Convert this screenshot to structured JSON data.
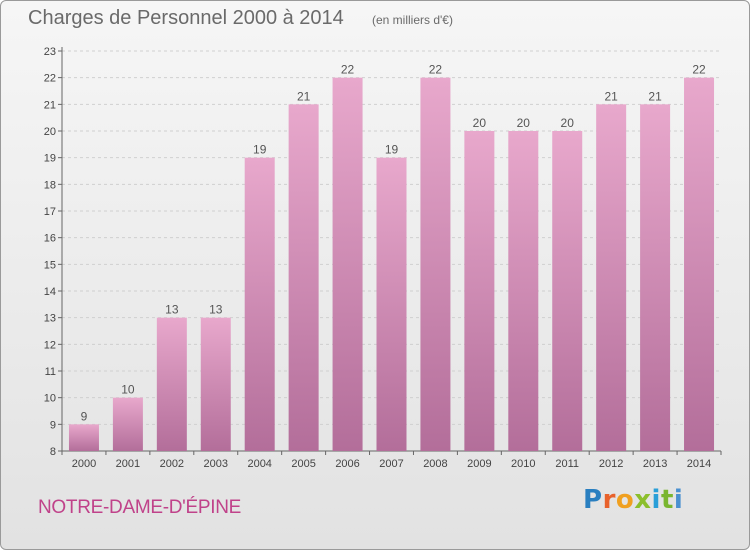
{
  "header": {
    "title": "Charges de Personnel 2000 à 2014",
    "subtitle": "(en milliers d'€)"
  },
  "footer": {
    "commune": "NOTRE-DAME-D'ÉPINE",
    "logo_letters": [
      "P",
      "r",
      "o",
      "x",
      "i",
      "t",
      "i"
    ]
  },
  "colors": {
    "bar_top": "#e8a8cc",
    "bar_bottom": "#b36e9a",
    "commune_text": "#c0428a",
    "grid": "#cfcfcf"
  },
  "chart_data": {
    "type": "bar",
    "title": "Charges de Personnel 2000 à 2014",
    "subtitle": "(en milliers d'€)",
    "xlabel": "",
    "ylabel": "",
    "categories": [
      "2000",
      "2001",
      "2002",
      "2003",
      "2004",
      "2005",
      "2006",
      "2007",
      "2008",
      "2009",
      "2010",
      "2011",
      "2012",
      "2013",
      "2014"
    ],
    "values": [
      9,
      10,
      13,
      13,
      19,
      21,
      22,
      19,
      22,
      20,
      20,
      20,
      21,
      21,
      22
    ],
    "ylim": [
      8,
      23
    ],
    "yticks": [
      8,
      9,
      10,
      11,
      12,
      13,
      14,
      15,
      16,
      17,
      18,
      19,
      20,
      21,
      22,
      23
    ],
    "grid": true
  }
}
